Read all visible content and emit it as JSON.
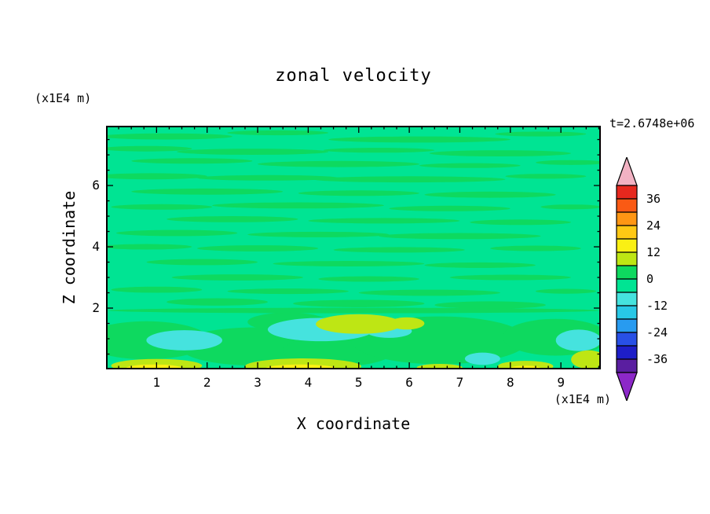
{
  "chart_data": {
    "type": "heatmap",
    "title": "zonal velocity",
    "time_label": "t=2.6748e+06",
    "grid": false,
    "legend_position": "right-colorbar",
    "xlim": [
      0,
      9.79
    ],
    "ylim": [
      0,
      7.95
    ],
    "x_axis": {
      "label": "X coordinate",
      "unit": "(x1E4 m)",
      "major_ticks": [
        1,
        2,
        3,
        4,
        5,
        6,
        7,
        8,
        9
      ],
      "minor_step": 0.25
    },
    "y_axis": {
      "label": "Z coordinate",
      "unit": "(x1E4 m)",
      "major_ticks": [
        2,
        4,
        6
      ],
      "minor_step": 0.5
    },
    "colorbar": {
      "labels": [
        "36",
        "24",
        "12",
        "0",
        "-12",
        "-24",
        "-36"
      ],
      "level_step": 6,
      "range": [
        -42,
        42
      ],
      "over_arrow_color": "#F2B2C3",
      "under_arrow_color": "#8C28C8",
      "box_colors_top_to_bottom": [
        "#E6281E",
        "#FA5A14",
        "#FF9614",
        "#FFC814",
        "#FAF014",
        "#BEE614",
        "#0ED95F",
        "#00E493",
        "#45E3DE",
        "#28C8E6",
        "#289BF0",
        "#2850E6",
        "#1E1EC8",
        "#5A1EA0"
      ]
    },
    "field_note": "zonal velocity near 0 over most of domain (spring-green background) with thin horizontal streak bands of weakly positive flow; patches of negative flow (cyan, -6..-12) and positive flow (yellow-green 6..12, yellow 12..18) near the lower boundary",
    "field": {
      "palette": {
        "bg": "#00E493",
        "g": "#0ED95F",
        "c": "#45E3DE",
        "yg": "#BEE614",
        "y": "#FAF014"
      },
      "blobs": [
        [
          1.2,
          7.6,
          1.3,
          0.1,
          "g"
        ],
        [
          3.4,
          7.72,
          1.0,
          0.08,
          "g"
        ],
        [
          6.2,
          7.5,
          1.8,
          0.1,
          "g"
        ],
        [
          8.6,
          7.68,
          0.9,
          0.08,
          "g"
        ],
        [
          0.8,
          7.2,
          0.9,
          0.09,
          "g"
        ],
        [
          2.9,
          7.1,
          1.5,
          0.1,
          "g"
        ],
        [
          5.4,
          7.15,
          1.1,
          0.08,
          "g"
        ],
        [
          7.8,
          7.05,
          1.4,
          0.1,
          "g"
        ],
        [
          1.7,
          6.8,
          1.2,
          0.09,
          "g"
        ],
        [
          4.6,
          6.7,
          1.6,
          0.1,
          "g"
        ],
        [
          7.2,
          6.65,
          1.0,
          0.08,
          "g"
        ],
        [
          9.2,
          6.75,
          0.7,
          0.08,
          "g"
        ],
        [
          0.9,
          6.3,
          1.1,
          0.1,
          "g"
        ],
        [
          3.2,
          6.25,
          1.4,
          0.09,
          "g"
        ],
        [
          6.0,
          6.2,
          1.9,
          0.1,
          "g"
        ],
        [
          8.7,
          6.3,
          0.8,
          0.08,
          "g"
        ],
        [
          2.0,
          5.8,
          1.5,
          0.1,
          "g"
        ],
        [
          5.0,
          5.75,
          1.2,
          0.09,
          "g"
        ],
        [
          7.6,
          5.7,
          1.3,
          0.1,
          "g"
        ],
        [
          1.1,
          5.3,
          1.0,
          0.09,
          "g"
        ],
        [
          3.8,
          5.35,
          1.7,
          0.1,
          "g"
        ],
        [
          6.8,
          5.25,
          1.2,
          0.09,
          "g"
        ],
        [
          9.2,
          5.3,
          0.6,
          0.08,
          "g"
        ],
        [
          2.5,
          4.9,
          1.3,
          0.1,
          "g"
        ],
        [
          5.5,
          4.85,
          1.5,
          0.09,
          "g"
        ],
        [
          8.2,
          4.8,
          1.0,
          0.09,
          "g"
        ],
        [
          1.4,
          4.45,
          1.2,
          0.1,
          "g"
        ],
        [
          4.2,
          4.4,
          1.4,
          0.09,
          "g"
        ],
        [
          7.0,
          4.35,
          1.6,
          0.1,
          "g"
        ],
        [
          0.8,
          4.0,
          0.9,
          0.09,
          "g"
        ],
        [
          3.0,
          3.95,
          1.2,
          0.1,
          "g"
        ],
        [
          5.8,
          3.9,
          1.3,
          0.09,
          "g"
        ],
        [
          8.5,
          3.95,
          0.9,
          0.09,
          "g"
        ],
        [
          1.9,
          3.5,
          1.1,
          0.1,
          "g"
        ],
        [
          4.8,
          3.45,
          1.5,
          0.09,
          "g"
        ],
        [
          7.4,
          3.4,
          1.1,
          0.09,
          "g"
        ],
        [
          2.6,
          3.0,
          1.3,
          0.1,
          "g"
        ],
        [
          5.2,
          2.95,
          1.0,
          0.09,
          "g"
        ],
        [
          8.0,
          3.0,
          1.2,
          0.09,
          "g"
        ],
        [
          1.0,
          2.6,
          0.9,
          0.1,
          "g"
        ],
        [
          3.6,
          2.55,
          1.2,
          0.09,
          "g"
        ],
        [
          6.4,
          2.5,
          1.4,
          0.1,
          "g"
        ],
        [
          9.1,
          2.55,
          0.6,
          0.08,
          "g"
        ],
        [
          2.2,
          2.2,
          1.0,
          0.12,
          "g"
        ],
        [
          5.0,
          2.15,
          1.3,
          0.12,
          "g"
        ],
        [
          7.6,
          2.1,
          1.1,
          0.12,
          "g"
        ],
        [
          4.9,
          1.92,
          4.85,
          0.09,
          "g"
        ],
        [
          0.8,
          0.95,
          1.25,
          0.62,
          "g"
        ],
        [
          2.9,
          0.75,
          1.45,
          0.62,
          "g"
        ],
        [
          4.6,
          0.6,
          1.1,
          0.5,
          "g"
        ],
        [
          6.6,
          0.95,
          1.75,
          0.78,
          "g"
        ],
        [
          8.9,
          1.05,
          1.05,
          0.6,
          "g"
        ],
        [
          3.6,
          1.55,
          0.8,
          0.3,
          "g"
        ],
        [
          1.55,
          0.95,
          0.75,
          0.33,
          "c"
        ],
        [
          4.25,
          1.3,
          1.05,
          0.38,
          "c"
        ],
        [
          5.6,
          1.25,
          0.45,
          0.22,
          "c"
        ],
        [
          9.35,
          0.95,
          0.45,
          0.35,
          "c"
        ],
        [
          7.45,
          0.35,
          0.35,
          0.2,
          "c"
        ],
        [
          5.0,
          1.48,
          0.85,
          0.32,
          "yg"
        ],
        [
          5.95,
          1.5,
          0.35,
          0.2,
          "yg"
        ],
        [
          1.0,
          0.12,
          0.9,
          0.22,
          "yg"
        ],
        [
          3.9,
          0.1,
          1.15,
          0.26,
          "yg"
        ],
        [
          6.6,
          0.06,
          0.45,
          0.12,
          "yg"
        ],
        [
          8.3,
          0.1,
          0.55,
          0.18,
          "yg"
        ],
        [
          9.55,
          0.32,
          0.35,
          0.3,
          "yg"
        ],
        [
          0.95,
          0.04,
          0.55,
          0.12,
          "y"
        ],
        [
          3.85,
          0.03,
          0.7,
          0.13,
          "y"
        ],
        [
          8.3,
          0.04,
          0.3,
          0.08,
          "y"
        ]
      ]
    }
  }
}
